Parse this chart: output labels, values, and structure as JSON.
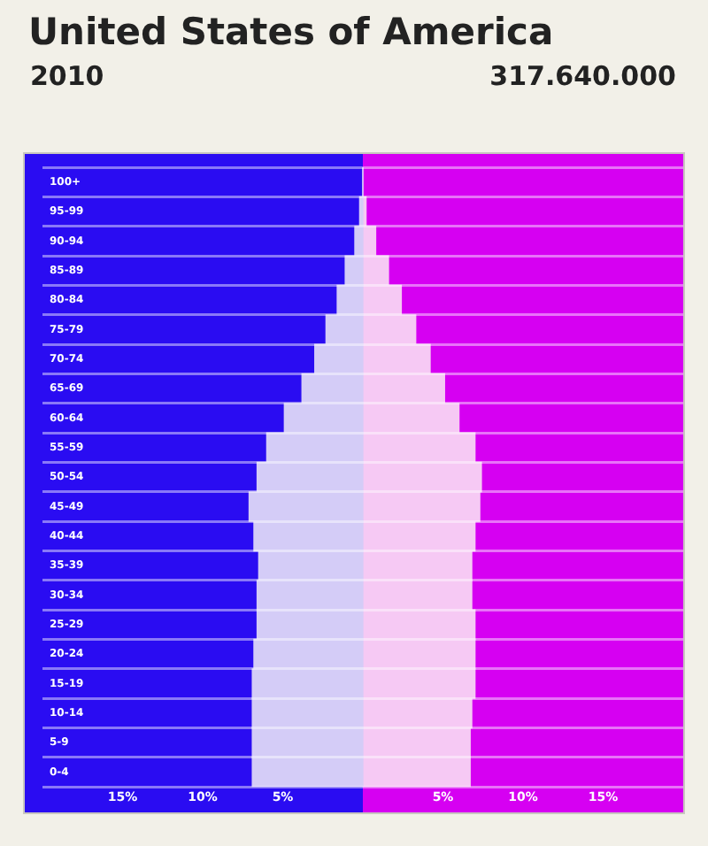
{
  "chart_data": {
    "type": "bar",
    "orientation": "horizontal",
    "stacked": true,
    "title": "United States of America",
    "subtitle": "2010",
    "annotations": [
      "317.640.000"
    ],
    "categories": [
      "100+",
      "95-99",
      "90-94",
      "85-89",
      "80-84",
      "75-79",
      "70-74",
      "65-69",
      "60-64",
      "55-59",
      "50-54",
      "45-49",
      "40-44",
      "35-39",
      "30-34",
      "25-29",
      "20-24",
      "15-19",
      "10-14",
      "5-9",
      "0-4"
    ],
    "series": [
      {
        "color": "#d4ccf7",
        "values": [
          0,
          -0.2,
          -0.5,
          -1.1,
          -1.6,
          -2.3,
          -3.0,
          -3.8,
          -4.9,
          -6.0,
          -6.6,
          -7.1,
          -6.8,
          -6.5,
          -6.6,
          -6.6,
          -6.8,
          -6.9,
          -6.9,
          -6.9,
          -6.9
        ]
      },
      {
        "color": "#f6c9f4",
        "values": [
          0,
          0.2,
          0.8,
          1.6,
          2.4,
          3.3,
          4.2,
          5.1,
          6.0,
          7.0,
          7.4,
          7.3,
          7.0,
          6.8,
          6.8,
          7.0,
          7.0,
          7.0,
          6.8,
          6.7,
          6.7
        ]
      }
    ],
    "xlim": [
      -20,
      20
    ],
    "xticks": [
      {
        "value": -15,
        "label": "15%"
      },
      {
        "value": -10,
        "label": "10%"
      },
      {
        "value": -5,
        "label": "5%"
      },
      {
        "value": 5,
        "label": "5%"
      },
      {
        "value": 10,
        "label": "10%"
      },
      {
        "value": 15,
        "label": "15%"
      }
    ],
    "grid": "y",
    "legend": false
  }
}
